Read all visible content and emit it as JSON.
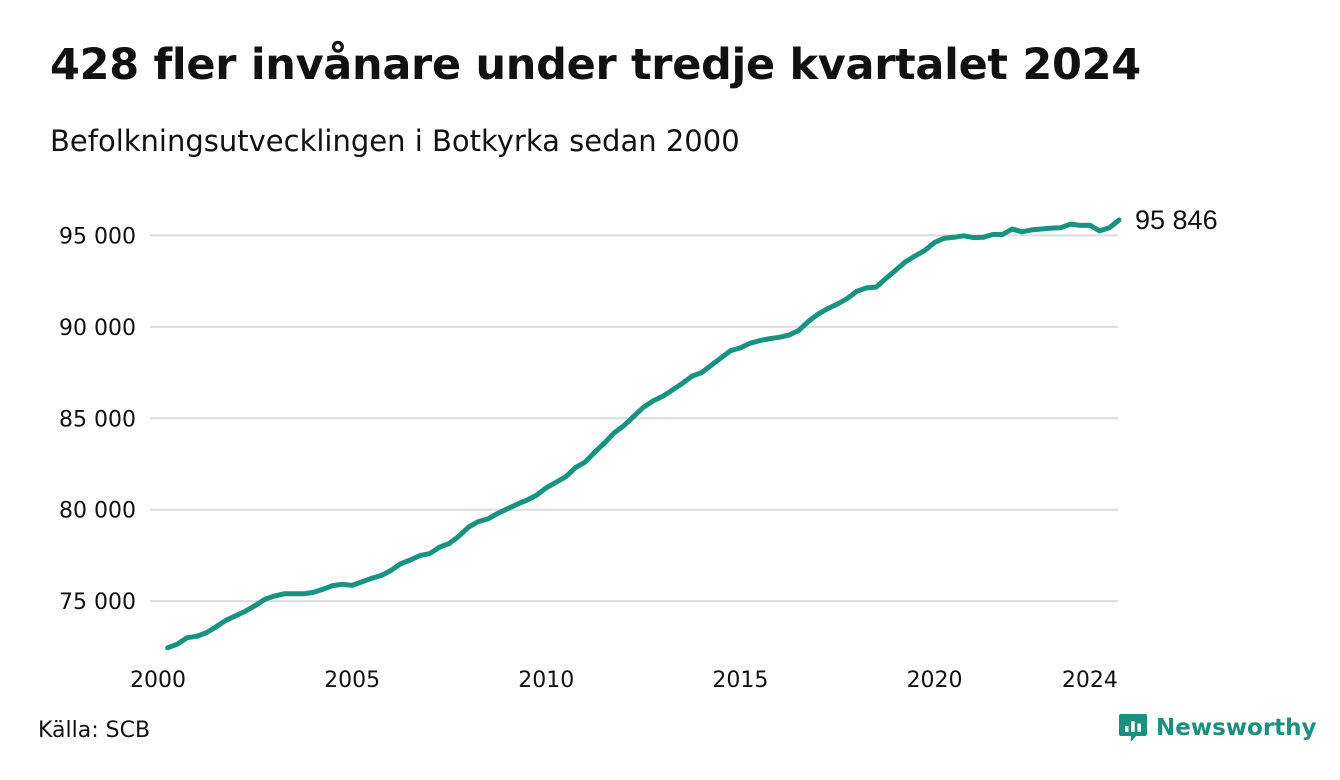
{
  "header": {
    "title": "428 fler invånare under tredje kvartalet 2024",
    "subtitle": "Befolkningsutvecklingen i Botkyrka sedan 2000"
  },
  "footer": {
    "source": "Källa: SCB",
    "brand": "Newsworthy"
  },
  "colors": {
    "line": "#17937f",
    "grid": "#dcdcdc",
    "brand": "#1d8f7f"
  },
  "chart_data": {
    "type": "line",
    "title": "428 fler invånare under tredje kvartalet 2024",
    "subtitle": "Befolkningsutvecklingen i Botkyrka sedan 2000",
    "xlabel": "",
    "ylabel": "",
    "xlim": [
      2000,
      2024.75
    ],
    "ylim": [
      72000,
      96500
    ],
    "x_ticks": [
      2000,
      2005,
      2010,
      2015,
      2020,
      2024
    ],
    "x_tick_labels": [
      "2000",
      "2005",
      "2010",
      "2015",
      "2020",
      "2024"
    ],
    "y_ticks": [
      75000,
      80000,
      85000,
      90000,
      95000
    ],
    "y_tick_labels": [
      "75 000",
      "80 000",
      "85 000",
      "90 000",
      "95 000"
    ],
    "grid": true,
    "legend": "none",
    "end_label": "95 846",
    "series": [
      {
        "x": [
          2000.25,
          2000.5,
          2000.75,
          2001,
          2001.25,
          2001.5,
          2001.75,
          2002,
          2002.25,
          2002.5,
          2002.75,
          2003,
          2003.25,
          2003.5,
          2003.75,
          2004,
          2004.25,
          2004.5,
          2004.75,
          2005,
          2005.25,
          2005.5,
          2005.75,
          2006,
          2006.25,
          2006.5,
          2006.75,
          2007,
          2007.25,
          2007.5,
          2007.75,
          2008,
          2008.25,
          2008.5,
          2008.75,
          2009,
          2009.25,
          2009.5,
          2009.75,
          2010,
          2010.25,
          2010.5,
          2010.75,
          2011,
          2011.25,
          2011.5,
          2011.75,
          2012,
          2012.25,
          2012.5,
          2012.75,
          2013,
          2013.25,
          2013.5,
          2013.75,
          2014,
          2014.25,
          2014.5,
          2014.75,
          2015,
          2015.25,
          2015.5,
          2015.75,
          2016,
          2016.25,
          2016.5,
          2016.75,
          2017,
          2017.25,
          2017.5,
          2017.75,
          2018,
          2018.25,
          2018.5,
          2018.75,
          2019,
          2019.25,
          2019.5,
          2019.75,
          2020,
          2020.25,
          2020.5,
          2020.75,
          2021,
          2021.25,
          2021.5,
          2021.75,
          2022,
          2022.25,
          2022.5,
          2022.75,
          2023,
          2023.25,
          2023.5,
          2023.75,
          2024,
          2024.25,
          2024.5,
          2024.75
        ],
        "values": [
          72450,
          72650,
          73000,
          73080,
          73280,
          73600,
          73950,
          74200,
          74450,
          74750,
          75100,
          75280,
          75400,
          75400,
          75400,
          75480,
          75650,
          75850,
          75920,
          75860,
          76050,
          76250,
          76400,
          76680,
          77050,
          77250,
          77500,
          77600,
          77950,
          78150,
          78550,
          79050,
          79350,
          79500,
          79800,
          80050,
          80300,
          80520,
          80800,
          81200,
          81500,
          81800,
          82300,
          82600,
          83150,
          83650,
          84200,
          84600,
          85100,
          85600,
          85950,
          86200,
          86550,
          86900,
          87300,
          87500,
          87900,
          88300,
          88700,
          88850,
          89100,
          89250,
          89350,
          89430,
          89550,
          89800,
          90300,
          90700,
          91000,
          91250,
          91550,
          91950,
          92130,
          92180,
          92650,
          93100,
          93560,
          93880,
          94180,
          94620,
          94850,
          94900,
          94980,
          94880,
          94900,
          95050,
          95050,
          95350,
          95200,
          95300,
          95350,
          95400,
          95420,
          95620,
          95550,
          95560,
          95250,
          95418,
          95846
        ]
      }
    ]
  }
}
